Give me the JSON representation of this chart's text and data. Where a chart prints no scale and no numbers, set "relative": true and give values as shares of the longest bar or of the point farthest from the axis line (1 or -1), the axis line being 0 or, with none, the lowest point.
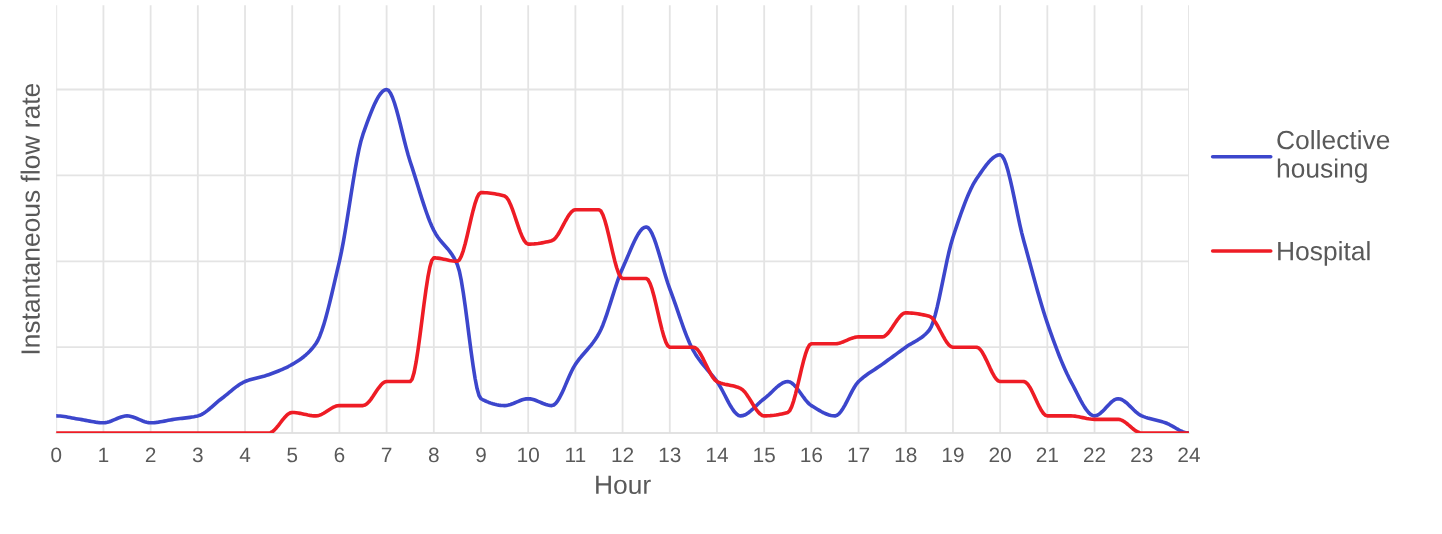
{
  "chart_data": {
    "type": "line",
    "xlabel": "Hour",
    "ylabel": "Instantaneous flow rate",
    "relative": true,
    "x": [
      0,
      0.5,
      1,
      1.5,
      2,
      2.5,
      3,
      3.5,
      4,
      4.5,
      5,
      5.5,
      6,
      6.5,
      7,
      7.5,
      8,
      8.5,
      9,
      9.5,
      10,
      10.5,
      11,
      11.5,
      12,
      12.5,
      13,
      13.5,
      14,
      14.5,
      15,
      15.5,
      16,
      16.5,
      17,
      17.5,
      18,
      18.5,
      19,
      19.5,
      20,
      20.5,
      21,
      21.5,
      22,
      22.5,
      23,
      23.5,
      24
    ],
    "xlim": [
      0,
      24
    ],
    "xticks": [
      0,
      1,
      2,
      3,
      4,
      5,
      6,
      7,
      8,
      9,
      10,
      11,
      12,
      13,
      14,
      15,
      16,
      17,
      18,
      19,
      20,
      21,
      22,
      23,
      24
    ],
    "series": [
      {
        "name": "Collective\nhousing",
        "color": "#3c46cc",
        "values": [
          0.05,
          0.04,
          0.03,
          0.05,
          0.03,
          0.04,
          0.05,
          0.1,
          0.15,
          0.17,
          0.2,
          0.26,
          0.5,
          0.87,
          1.0,
          0.79,
          0.59,
          0.49,
          0.1,
          0.08,
          0.1,
          0.08,
          0.2,
          0.29,
          0.48,
          0.6,
          0.42,
          0.24,
          0.15,
          0.05,
          0.1,
          0.15,
          0.08,
          0.05,
          0.15,
          0.2,
          0.25,
          0.3,
          0.57,
          0.74,
          0.81,
          0.56,
          0.32,
          0.15,
          0.05,
          0.1,
          0.05,
          0.03,
          0
        ]
      },
      {
        "name": "Hospital",
        "color": "#ee1c25",
        "values": [
          0,
          0,
          0,
          0,
          0,
          0,
          0,
          0,
          0,
          0,
          0.06,
          0.05,
          0.08,
          0.08,
          0.15,
          0.15,
          0.51,
          0.5,
          0.7,
          0.69,
          0.55,
          0.56,
          0.65,
          0.65,
          0.45,
          0.45,
          0.25,
          0.25,
          0.15,
          0.13,
          0.05,
          0.06,
          0.26,
          0.26,
          0.28,
          0.28,
          0.35,
          0.34,
          0.25,
          0.25,
          0.15,
          0.15,
          0.05,
          0.05,
          0.04,
          0.04,
          0,
          0,
          0
        ]
      }
    ],
    "grid": true,
    "legend": "right",
    "marker": "none",
    "line_style": "solid"
  }
}
